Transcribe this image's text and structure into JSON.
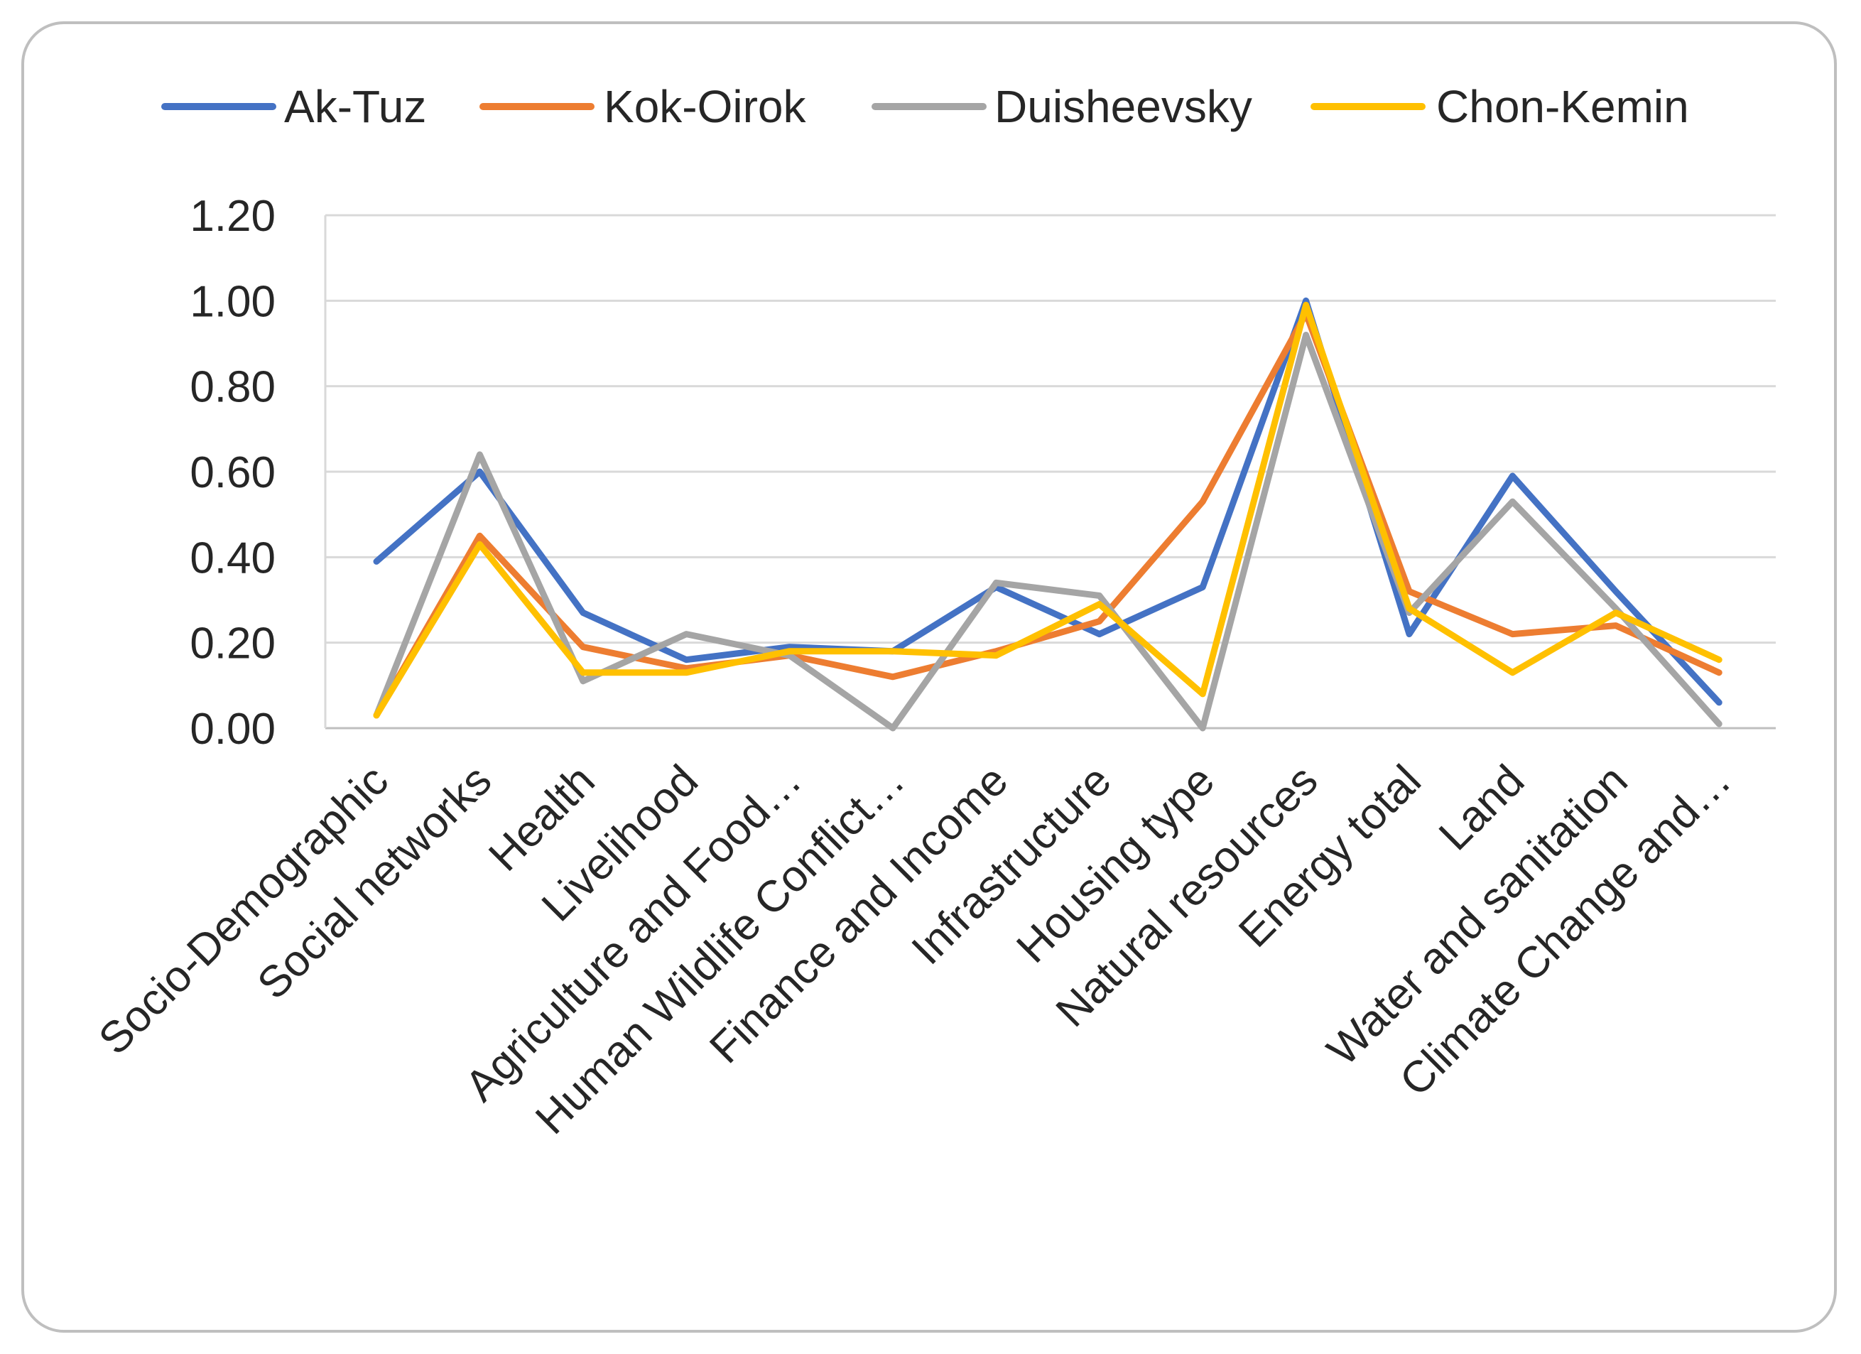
{
  "chart_data": {
    "type": "line",
    "title": "",
    "xlabel": "",
    "ylabel": "",
    "ylim": [
      0,
      1.2
    ],
    "yticks": [
      "0.00",
      "0.20",
      "0.40",
      "0.60",
      "0.80",
      "1.00",
      "1.20"
    ],
    "ytick_values": [
      0,
      0.2,
      0.4,
      0.6,
      0.8,
      1.0,
      1.2
    ],
    "grid": "horizontal",
    "legend_position": "top",
    "categories": [
      "Socio-Demographic",
      "Social networks",
      "Health",
      "Livelihood",
      "Agriculture and Food…",
      "Human Wildlife Conflict…",
      "Finance and Income",
      "Infrastructure",
      "Housing type",
      "Natural resources",
      "Energy total",
      "Land",
      "Water and sanitation",
      "Climate Change and…"
    ],
    "series": [
      {
        "name": "Ak-Tuz",
        "color": "#4472C4",
        "values": [
          0.39,
          0.6,
          0.27,
          0.16,
          0.19,
          0.18,
          0.33,
          0.22,
          0.33,
          1.0,
          0.22,
          0.59,
          0.32,
          0.06
        ]
      },
      {
        "name": "Kok-Oirok",
        "color": "#ED7D31",
        "values": [
          0.03,
          0.45,
          0.19,
          0.14,
          0.17,
          0.12,
          0.18,
          0.25,
          0.53,
          0.97,
          0.32,
          0.22,
          0.24,
          0.13
        ]
      },
      {
        "name": "Duisheevsky",
        "color": "#A5A5A5",
        "values": [
          0.03,
          0.64,
          0.11,
          0.22,
          0.17,
          0.0,
          0.34,
          0.31,
          0.0,
          0.92,
          0.27,
          0.53,
          0.28,
          0.01
        ]
      },
      {
        "name": "Chon-Kemin",
        "color": "#FFC000",
        "values": [
          0.03,
          0.43,
          0.13,
          0.13,
          0.18,
          0.18,
          0.17,
          0.29,
          0.08,
          0.99,
          0.28,
          0.13,
          0.27,
          0.16
        ]
      }
    ]
  }
}
